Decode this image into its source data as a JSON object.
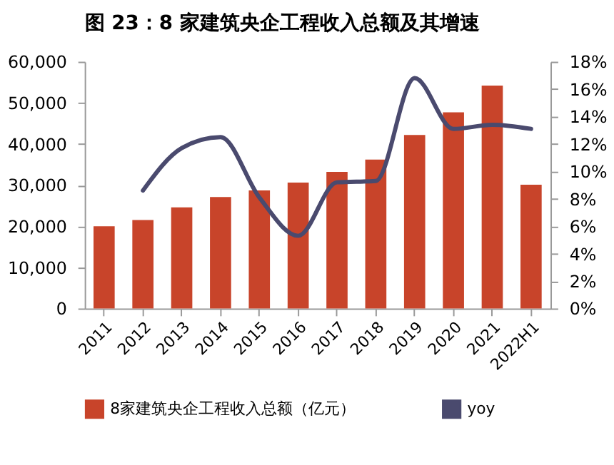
{
  "chart_data": {
    "type": "bar",
    "title": "图 23：8 家建筑央企工程收入总额及其增速",
    "categories": [
      "2011",
      "2012",
      "2013",
      "2014",
      "2015",
      "2016",
      "2017",
      "2018",
      "2019",
      "2020",
      "2021",
      "2022H1"
    ],
    "series": [
      {
        "name": "8家建筑央企工程收入总额（亿元）",
        "color": "#c8442a",
        "values": [
          20000,
          21500,
          24600,
          27100,
          28700,
          30600,
          33200,
          36200,
          42200,
          47700,
          54200,
          30100
        ]
      },
      {
        "name": "yoy",
        "type": "line",
        "axis": "y2",
        "color": "#4a4a6e",
        "values": [
          null,
          8.6,
          11.7,
          12.5,
          8.1,
          5.3,
          9.2,
          9.3,
          16.8,
          13.1,
          13.4,
          13.1
        ]
      }
    ],
    "ylim": [
      0,
      60000
    ],
    "yticks": [
      {
        "value": 0,
        "label": "0"
      },
      {
        "value": 10000,
        "label": "10,000"
      },
      {
        "value": 20000,
        "label": "20,000"
      },
      {
        "value": 30000,
        "label": "30,000"
      },
      {
        "value": 40000,
        "label": "40,000"
      },
      {
        "value": 50000,
        "label": "50,000"
      },
      {
        "value": 60000,
        "label": "60,000"
      }
    ],
    "y2lim": [
      0,
      18
    ],
    "y2ticks": [
      {
        "value": 0,
        "label": "0%"
      },
      {
        "value": 2,
        "label": "2%"
      },
      {
        "value": 4,
        "label": "4%"
      },
      {
        "value": 6,
        "label": "6%"
      },
      {
        "value": 8,
        "label": "8%"
      },
      {
        "value": 10,
        "label": "10%"
      },
      {
        "value": 12,
        "label": "12%"
      },
      {
        "value": 14,
        "label": "14%"
      },
      {
        "value": 16,
        "label": "16%"
      },
      {
        "value": 18,
        "label": "18%"
      }
    ],
    "legend": "bottom",
    "grid": false
  }
}
